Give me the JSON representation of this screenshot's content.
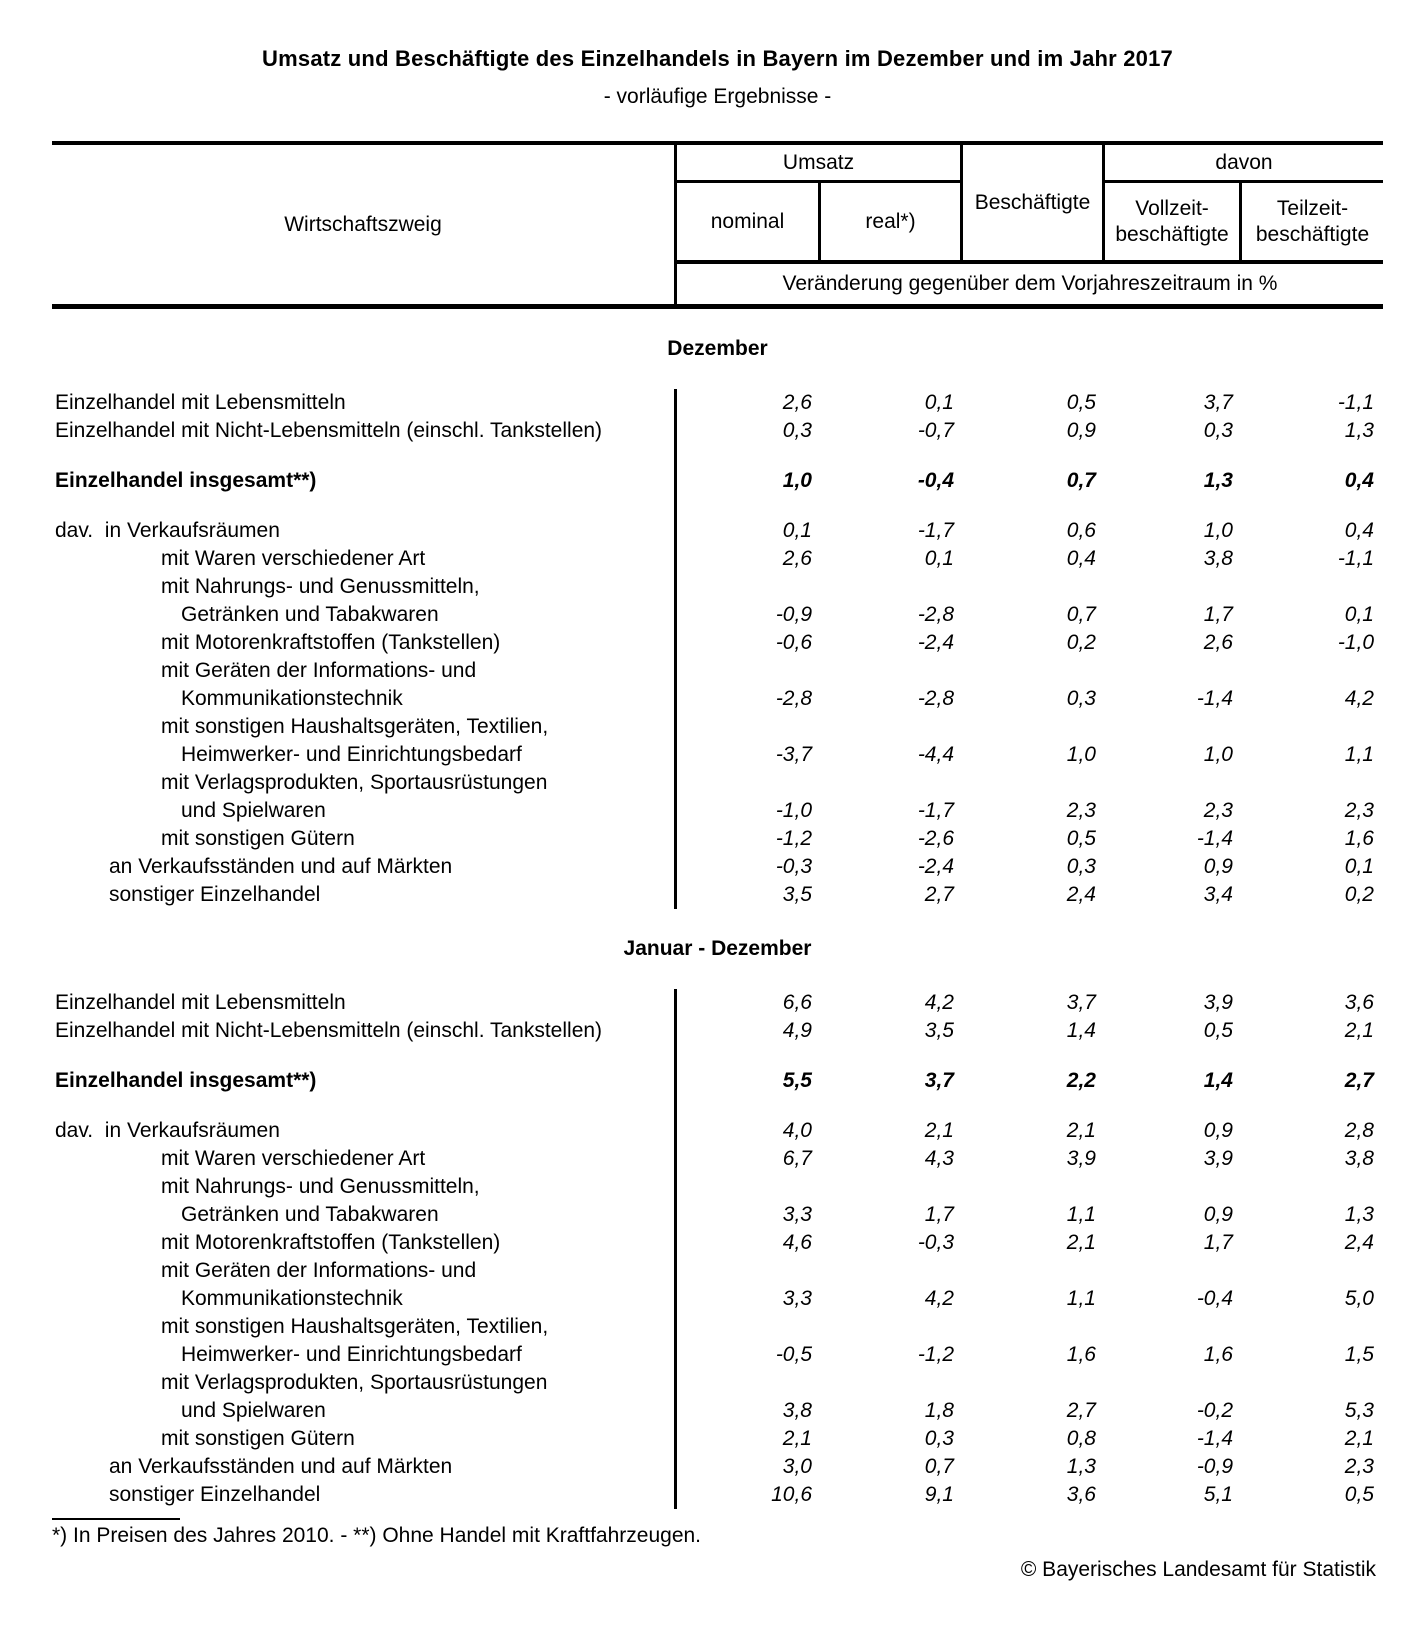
{
  "title": "Umsatz und Beschäftigte des Einzelhandels in Bayern im Dezember und im Jahr 2017",
  "subtitle": "- vorläufige Ergebnisse -",
  "header": {
    "wirtschaftszweig": "Wirtschaftszweig",
    "umsatz": "Umsatz",
    "nominal": "nominal",
    "real": "real*)",
    "beschaeftigte": "Beschäftigte",
    "davon": "davon",
    "vollzeit_line1": "Vollzeit-",
    "vollzeit_line2": "beschäftigte",
    "teilzeit_line1": "Teilzeit-",
    "teilzeit_line2": "beschäftigte",
    "unit_row": "Veränderung gegenüber dem Vorjahreszeitraum in %"
  },
  "sections": [
    {
      "title": "Dezember",
      "rows": [
        {
          "label": "Einzelhandel mit Lebensmitteln",
          "indent": 0,
          "values": [
            "2,6",
            "0,1",
            "0,5",
            "3,7",
            "-1,1"
          ]
        },
        {
          "label": "Einzelhandel mit Nicht-Lebensmitteln (einschl. Tankstellen)",
          "indent": 0,
          "values": [
            "0,3",
            "-0,7",
            "0,9",
            "0,3",
            "1,3"
          ]
        },
        {
          "spacer": true
        },
        {
          "label": "Einzelhandel insgesamt**)",
          "indent": 0,
          "bold": true,
          "values": [
            "1,0",
            "-0,4",
            "0,7",
            "1,3",
            "0,4"
          ]
        },
        {
          "spacer": true
        },
        {
          "label": "dav.  in Verkaufsräumen",
          "indent": 0,
          "values": [
            "0,1",
            "-1,7",
            "0,6",
            "1,0",
            "0,4"
          ]
        },
        {
          "label": "mit Waren verschiedener Art",
          "indent": 2,
          "values": [
            "2,6",
            "0,1",
            "0,4",
            "3,8",
            "-1,1"
          ]
        },
        {
          "label": "mit Nahrungs- und Genussmitteln,",
          "indent": 2,
          "values": []
        },
        {
          "label": "Getränken und Tabakwaren",
          "indent": 3,
          "values": [
            "-0,9",
            "-2,8",
            "0,7",
            "1,7",
            "0,1"
          ]
        },
        {
          "label": "mit Motorenkraftstoffen (Tankstellen)",
          "indent": 2,
          "values": [
            "-0,6",
            "-2,4",
            "0,2",
            "2,6",
            "-1,0"
          ]
        },
        {
          "label": "mit Geräten der Informations- und",
          "indent": 2,
          "values": []
        },
        {
          "label": "Kommunikationstechnik",
          "indent": 3,
          "values": [
            "-2,8",
            "-2,8",
            "0,3",
            "-1,4",
            "4,2"
          ]
        },
        {
          "label": "mit sonstigen Haushaltsgeräten, Textilien,",
          "indent": 2,
          "values": []
        },
        {
          "label": "Heimwerker- und Einrichtungsbedarf",
          "indent": 3,
          "values": [
            "-3,7",
            "-4,4",
            "1,0",
            "1,0",
            "1,1"
          ]
        },
        {
          "label": "mit Verlagsprodukten, Sportausrüstungen",
          "indent": 2,
          "values": []
        },
        {
          "label": "und Spielwaren",
          "indent": 3,
          "values": [
            "-1,0",
            "-1,7",
            "2,3",
            "2,3",
            "2,3"
          ]
        },
        {
          "label": "mit sonstigen Gütern",
          "indent": 2,
          "values": [
            "-1,2",
            "-2,6",
            "0,5",
            "-1,4",
            "1,6"
          ]
        },
        {
          "label": "an Verkaufsständen und auf Märkten",
          "indent": 1,
          "values": [
            "-0,3",
            "-2,4",
            "0,3",
            "0,9",
            "0,1"
          ]
        },
        {
          "label": "sonstiger Einzelhandel",
          "indent": 1,
          "values": [
            "3,5",
            "2,7",
            "2,4",
            "3,4",
            "0,2"
          ]
        }
      ]
    },
    {
      "title": "Januar - Dezember",
      "rows": [
        {
          "label": "Einzelhandel mit Lebensmitteln",
          "indent": 0,
          "values": [
            "6,6",
            "4,2",
            "3,7",
            "3,9",
            "3,6"
          ]
        },
        {
          "label": "Einzelhandel mit Nicht-Lebensmitteln (einschl. Tankstellen)",
          "indent": 0,
          "values": [
            "4,9",
            "3,5",
            "1,4",
            "0,5",
            "2,1"
          ]
        },
        {
          "spacer": true
        },
        {
          "label": "Einzelhandel insgesamt**)",
          "indent": 0,
          "bold": true,
          "values": [
            "5,5",
            "3,7",
            "2,2",
            "1,4",
            "2,7"
          ]
        },
        {
          "spacer": true
        },
        {
          "label": "dav.  in Verkaufsräumen",
          "indent": 0,
          "values": [
            "4,0",
            "2,1",
            "2,1",
            "0,9",
            "2,8"
          ]
        },
        {
          "label": "mit Waren verschiedener Art",
          "indent": 2,
          "values": [
            "6,7",
            "4,3",
            "3,9",
            "3,9",
            "3,8"
          ]
        },
        {
          "label": "mit Nahrungs- und Genussmitteln,",
          "indent": 2,
          "values": []
        },
        {
          "label": "Getränken und Tabakwaren",
          "indent": 3,
          "values": [
            "3,3",
            "1,7",
            "1,1",
            "0,9",
            "1,3"
          ]
        },
        {
          "label": "mit Motorenkraftstoffen (Tankstellen)",
          "indent": 2,
          "values": [
            "4,6",
            "-0,3",
            "2,1",
            "1,7",
            "2,4"
          ]
        },
        {
          "label": "mit Geräten der Informations- und",
          "indent": 2,
          "values": []
        },
        {
          "label": "Kommunikationstechnik",
          "indent": 3,
          "values": [
            "3,3",
            "4,2",
            "1,1",
            "-0,4",
            "5,0"
          ]
        },
        {
          "label": "mit sonstigen Haushaltsgeräten, Textilien,",
          "indent": 2,
          "values": []
        },
        {
          "label": "Heimwerker- und Einrichtungsbedarf",
          "indent": 3,
          "values": [
            "-0,5",
            "-1,2",
            "1,6",
            "1,6",
            "1,5"
          ]
        },
        {
          "label": "mit Verlagsprodukten, Sportausrüstungen",
          "indent": 2,
          "values": []
        },
        {
          "label": "und Spielwaren",
          "indent": 3,
          "values": [
            "3,8",
            "1,8",
            "2,7",
            "-0,2",
            "5,3"
          ]
        },
        {
          "label": "mit sonstigen Gütern",
          "indent": 2,
          "values": [
            "2,1",
            "0,3",
            "0,8",
            "-1,4",
            "2,1"
          ]
        },
        {
          "label": "an Verkaufsständen und auf Märkten",
          "indent": 1,
          "values": [
            "3,0",
            "0,7",
            "1,3",
            "-0,9",
            "2,3"
          ]
        },
        {
          "label": "sonstiger Einzelhandel",
          "indent": 1,
          "values": [
            "10,6",
            "9,1",
            "3,6",
            "5,1",
            "0,5"
          ]
        }
      ]
    }
  ],
  "footnote": "*) In Preisen des Jahres 2010. - **) Ohne Handel mit Kraftfahrzeugen.",
  "copyright": "© Bayerisches Landesamt für Statistik"
}
